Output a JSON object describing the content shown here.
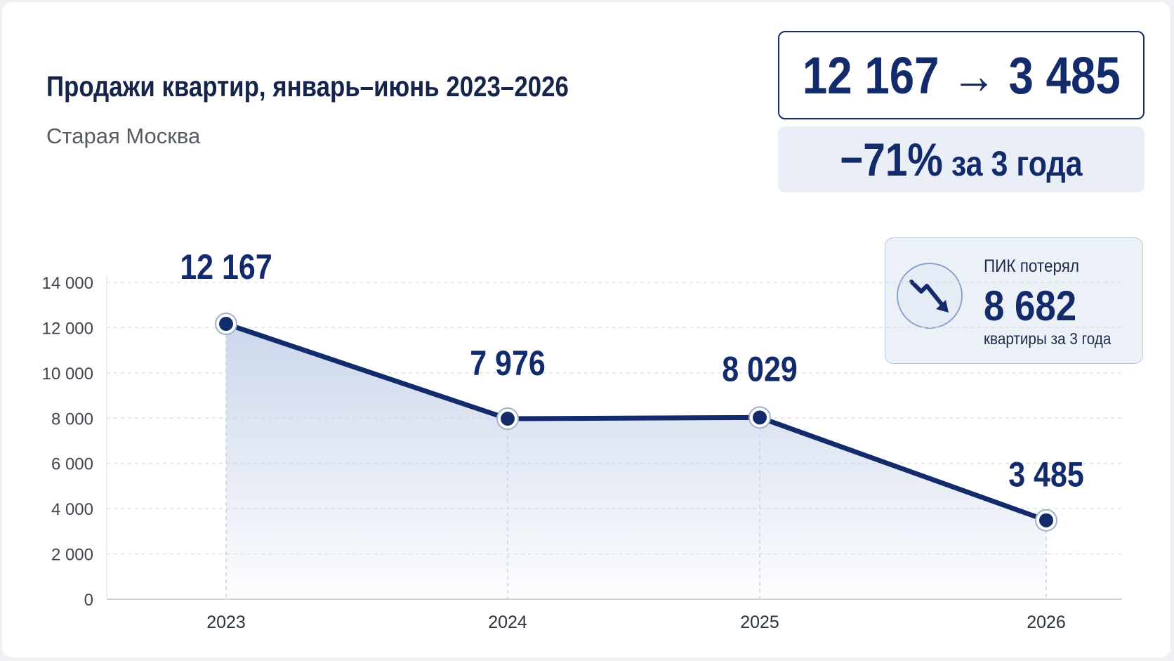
{
  "header": {
    "title": "Продажи квартир, январь–июнь 2023–2026",
    "subtitle": "Старая Москва"
  },
  "summary": {
    "change_text": "12 167 → 3 485",
    "percent_text": "−71%",
    "percent_suffix": " за 3 года"
  },
  "pik": {
    "label": "ПИК потерял",
    "value": "8 682",
    "sub": "квартиры за 3 года",
    "icon": "trend-down-icon"
  },
  "chart_data": {
    "type": "area",
    "categories": [
      "2023",
      "2024",
      "2025",
      "2026"
    ],
    "values": [
      12167,
      7976,
      8029,
      3485
    ],
    "value_labels": [
      "12 167",
      "7 976",
      "8 029",
      "3 485"
    ],
    "yticks": [
      0,
      2000,
      4000,
      6000,
      8000,
      10000,
      12000,
      14000
    ],
    "ytick_labels": [
      "0",
      "2 000",
      "4 000",
      "6 000",
      "8 000",
      "10 000",
      "12 000",
      "14 000"
    ],
    "ylim": [
      0,
      14000
    ],
    "grid": true,
    "legend": "none",
    "xlabel": "",
    "ylabel": "",
    "colors": {
      "line": "#132b6b",
      "fill_top": "#c9d5ea",
      "grid": "#d9dde4"
    }
  }
}
